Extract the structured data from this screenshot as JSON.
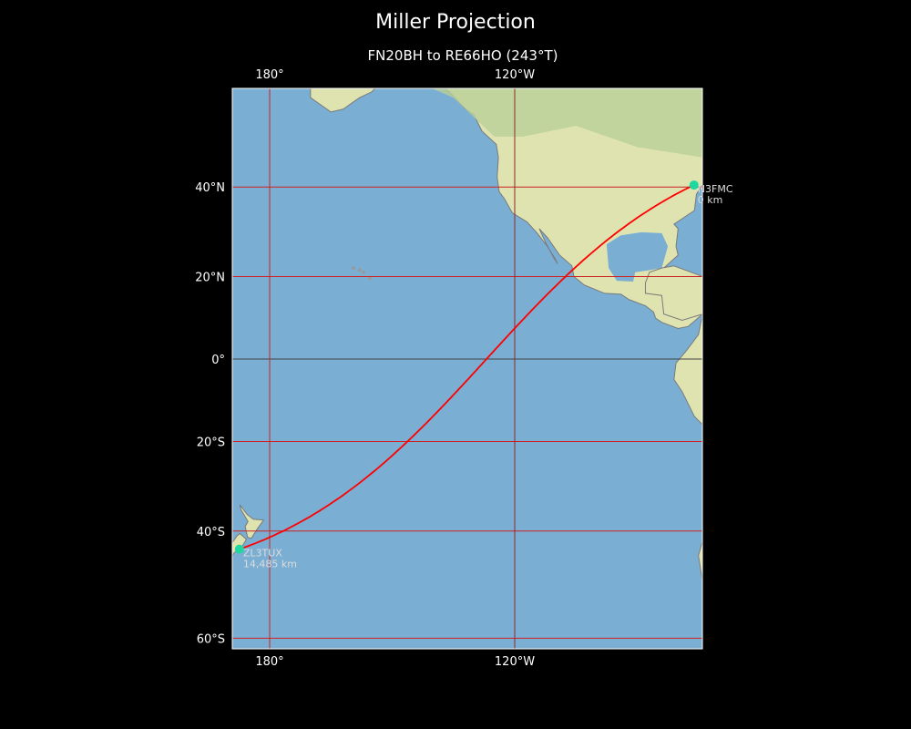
{
  "title": "Miller Projection",
  "subtitle": "FN20BH to RE66HO (243°T)",
  "map": {
    "projection": "Miller",
    "extent": {
      "lon_min": 170.9,
      "lon_max": -74.0,
      "lat_min": -61.8,
      "lat_max": 58.5
    },
    "central_longitude": -150,
    "ocean_color": "#7aaed3",
    "land_color": "#dfe3b0",
    "gridline_color": "#cc2222",
    "equator_color": "#444444",
    "route_color": "#ff0000",
    "marker_color": "#1fd8a0"
  },
  "lon_ticks": [
    {
      "lon": 180,
      "label": "180°"
    },
    {
      "lon": -120,
      "label": "120°W"
    }
  ],
  "lat_ticks": [
    {
      "lat": 40,
      "label": "40°N"
    },
    {
      "lat": 20,
      "label": "20°N"
    },
    {
      "lat": 0,
      "label": "0°"
    },
    {
      "lat": -20,
      "label": "20°S"
    },
    {
      "lat": -40,
      "label": "40°S"
    },
    {
      "lat": -60,
      "label": "60°S"
    }
  ],
  "points": [
    {
      "call": "N3FMC",
      "distance": "0 km",
      "lat": 40.4,
      "lon": -76.1
    },
    {
      "call": "ZL3TUX",
      "distance": "14,485 km",
      "lat": -43.7,
      "lon": 172.6
    }
  ]
}
